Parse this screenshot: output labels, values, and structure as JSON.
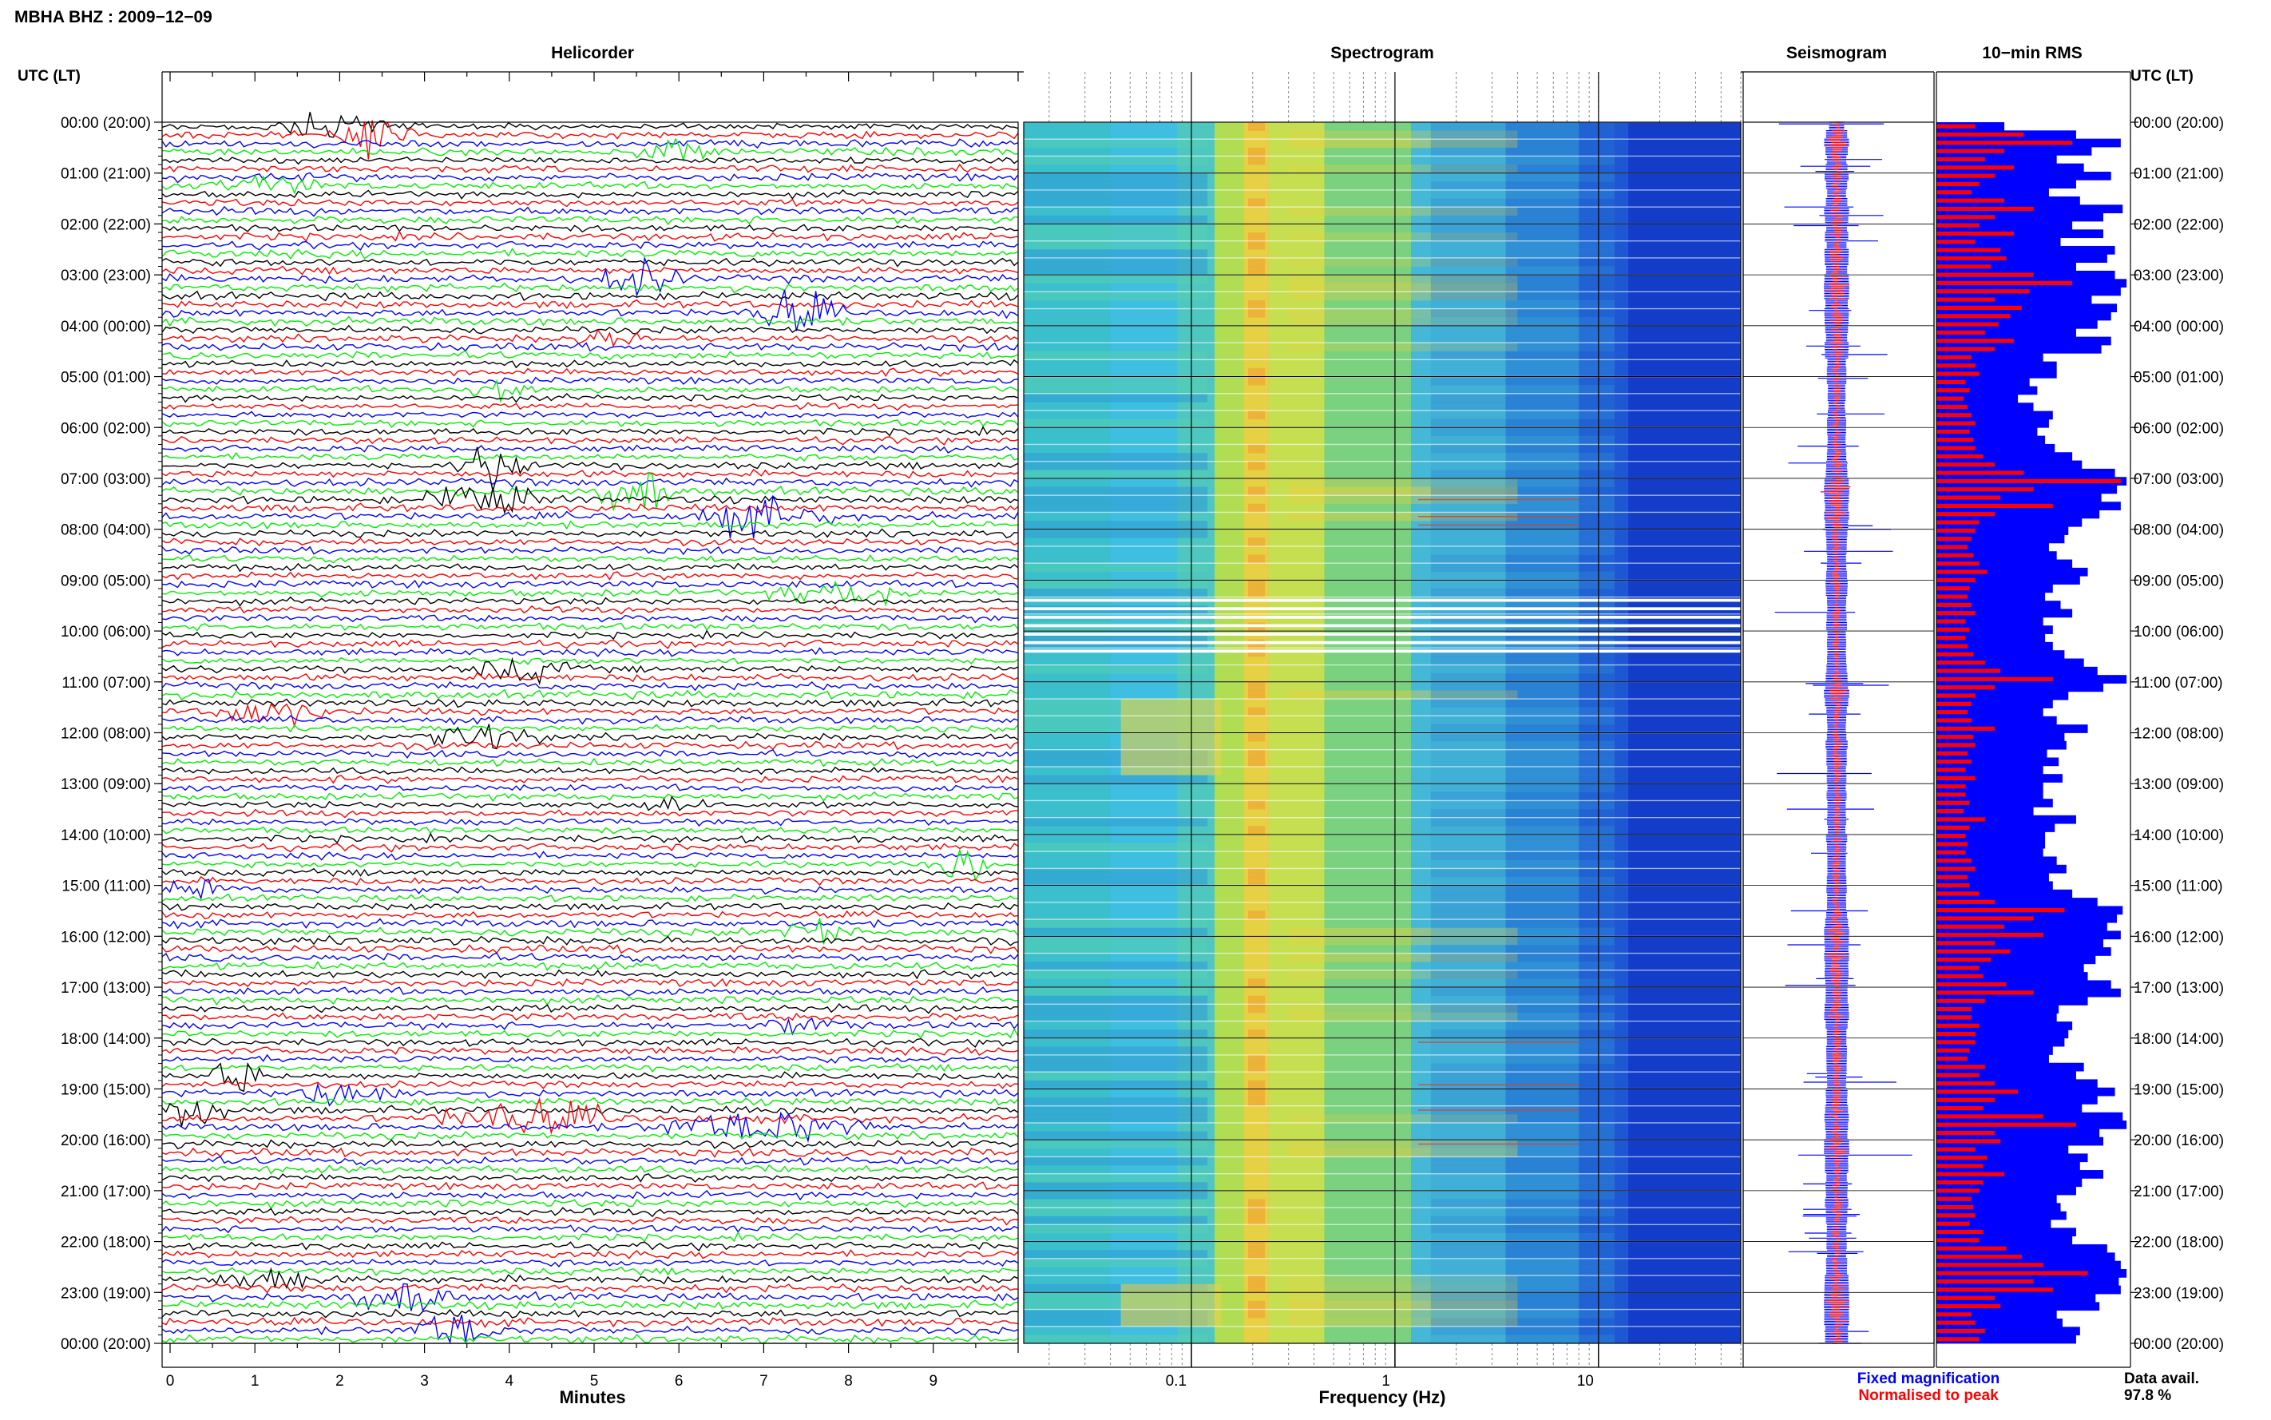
{
  "header": {
    "title": "MBHA BHZ : 2009−12−09",
    "utc_label_left": "UTC (LT)",
    "utc_label_right": "UTC (LT)"
  },
  "panels": {
    "helicorder": "Helicorder",
    "spectrogram": "Spectrogram",
    "seismogram": "Seismogram",
    "rms": "10−min RMS"
  },
  "axes": {
    "minutes_label": "Minutes",
    "minute_ticks": [
      "0",
      "1",
      "2",
      "3",
      "4",
      "5",
      "6",
      "7",
      "8",
      "9"
    ],
    "frequency_label": "Frequency (Hz)",
    "frequency_ticks": [
      "0.1",
      "1",
      "10"
    ]
  },
  "legend": {
    "fixed": "Fixed magnification",
    "normalised": "Normalised to peak",
    "fixed_color": "#0000ff",
    "normalised_color": "#ff0000"
  },
  "availability": {
    "label": "Data avail.",
    "value": "97.8 %"
  },
  "chart_data": {
    "type": "heatmap",
    "colors": {
      "trace_cycle": [
        "#000000",
        "#ff0000",
        "#0000ff",
        "#00ee00"
      ]
    },
    "frequency_range_hz": [
      0.015,
      50
    ],
    "frequency_scale": "log",
    "minutes_range": [
      0,
      10
    ],
    "hour_ticks": [
      "00:00 (20:00)",
      "01:00 (21:00)",
      "02:00 (22:00)",
      "03:00 (23:00)",
      "04:00 (00:00)",
      "05:00 (01:00)",
      "06:00 (02:00)",
      "07:00 (03:00)",
      "08:00 (04:00)",
      "09:00 (05:00)",
      "10:00 (06:00)",
      "11:00 (07:00)",
      "12:00 (08:00)",
      "13:00 (09:00)",
      "14:00 (10:00)",
      "15:00 (11:00)",
      "16:00 (12:00)",
      "17:00 (13:00)",
      "18:00 (14:00)",
      "19:00 (15:00)",
      "20:00 (16:00)",
      "21:00 (17:00)",
      "22:00 (18:00)",
      "23:00 (19:00)",
      "00:00 (20:00)"
    ],
    "rms_series": [
      {
        "name": "Fixed magnification",
        "values": [
          0.35,
          0.72,
          0.95,
          0.8,
          0.62,
          0.76,
          0.9,
          0.72,
          0.58,
          0.74,
          0.96,
          0.86,
          0.7,
          0.86,
          0.64,
          0.92,
          0.88,
          0.72,
          0.92,
          0.98,
          0.95,
          0.8,
          0.93,
          0.9,
          0.83,
          0.72,
          0.9,
          0.85,
          0.55,
          0.62,
          0.62,
          0.48,
          0.52,
          0.42,
          0.5,
          0.6,
          0.58,
          0.52,
          0.56,
          0.61,
          0.7,
          0.75,
          0.92,
          0.98,
          0.93,
          0.85,
          0.95,
          0.84,
          0.75,
          0.68,
          0.66,
          0.58,
          0.62,
          0.7,
          0.78,
          0.74,
          0.6,
          0.56,
          0.64,
          0.7,
          0.55,
          0.6,
          0.56,
          0.6,
          0.66,
          0.76,
          0.83,
          0.98,
          0.86,
          0.68,
          0.6,
          0.55,
          0.62,
          0.78,
          0.66,
          0.67,
          0.57,
          0.63,
          0.55,
          0.65,
          0.55,
          0.55,
          0.6,
          0.5,
          0.72,
          0.61,
          0.56,
          0.56,
          0.55,
          0.62,
          0.67,
          0.58,
          0.6,
          0.7,
          0.83,
          0.96,
          0.93,
          0.88,
          0.95,
          0.86,
          0.9,
          0.82,
          0.76,
          0.78,
          0.9,
          0.95,
          0.78,
          0.63,
          0.62,
          0.7,
          0.68,
          0.66,
          0.6,
          0.58,
          0.76,
          0.72,
          0.83,
          0.92,
          0.83,
          0.75,
          0.96,
          0.98,
          0.84,
          0.86,
          0.68,
          0.78,
          0.74,
          0.86,
          0.75,
          0.72,
          0.62,
          0.64,
          0.67,
          0.59,
          0.72,
          0.7,
          0.88,
          0.92,
          0.95,
          0.98,
          0.94,
          0.95,
          0.82,
          0.84,
          0.62,
          0.65,
          0.74,
          0.72
        ]
      },
      {
        "name": "Normalised to peak",
        "values": [
          0.2,
          0.45,
          0.7,
          0.35,
          0.25,
          0.4,
          0.3,
          0.22,
          0.18,
          0.35,
          0.5,
          0.3,
          0.22,
          0.4,
          0.2,
          0.33,
          0.36,
          0.28,
          0.5,
          0.7,
          0.48,
          0.3,
          0.44,
          0.38,
          0.32,
          0.25,
          0.4,
          0.3,
          0.18,
          0.2,
          0.22,
          0.15,
          0.17,
          0.14,
          0.16,
          0.18,
          0.2,
          0.17,
          0.19,
          0.2,
          0.24,
          0.3,
          0.45,
          0.95,
          0.5,
          0.33,
          0.6,
          0.3,
          0.22,
          0.2,
          0.18,
          0.16,
          0.19,
          0.22,
          0.26,
          0.2,
          0.17,
          0.16,
          0.18,
          0.2,
          0.15,
          0.17,
          0.15,
          0.16,
          0.19,
          0.25,
          0.33,
          0.6,
          0.3,
          0.2,
          0.18,
          0.16,
          0.18,
          0.3,
          0.19,
          0.2,
          0.16,
          0.18,
          0.15,
          0.2,
          0.15,
          0.15,
          0.17,
          0.14,
          0.25,
          0.17,
          0.15,
          0.16,
          0.15,
          0.18,
          0.2,
          0.16,
          0.17,
          0.22,
          0.3,
          0.66,
          0.5,
          0.35,
          0.55,
          0.3,
          0.38,
          0.28,
          0.22,
          0.24,
          0.36,
          0.5,
          0.25,
          0.18,
          0.18,
          0.22,
          0.2,
          0.2,
          0.17,
          0.16,
          0.25,
          0.22,
          0.3,
          0.42,
          0.3,
          0.24,
          0.55,
          0.72,
          0.3,
          0.33,
          0.2,
          0.26,
          0.24,
          0.35,
          0.24,
          0.22,
          0.18,
          0.19,
          0.2,
          0.17,
          0.24,
          0.22,
          0.36,
          0.44,
          0.55,
          0.78,
          0.5,
          0.6,
          0.3,
          0.33,
          0.18,
          0.2,
          0.25,
          0.22
        ]
      }
    ]
  }
}
